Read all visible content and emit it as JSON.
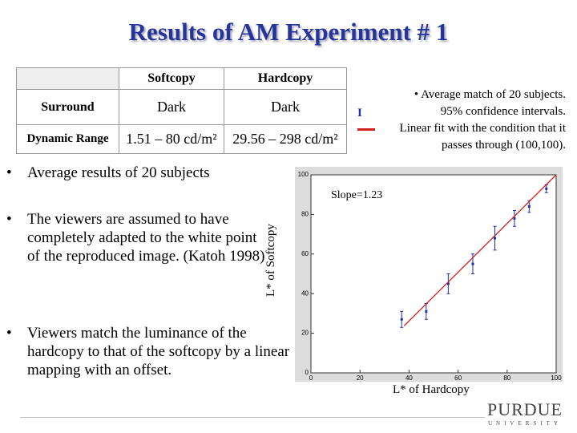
{
  "title": "Results of AM Experiment # 1",
  "table": {
    "header": [
      "Softcopy",
      "Hardcopy"
    ],
    "rows": [
      [
        "Surround",
        "Dark",
        "Dark"
      ],
      [
        "Dynamic Range",
        "1.51 – 80 cd/m²",
        "29.56 – 298 cd/m²"
      ]
    ]
  },
  "bullets": [
    "Average results of 20 subjects",
    "The viewers are assumed to have completely adapted to the white point of the reproduced image. (Katoh 1998)",
    "Viewers match the luminance of the hardcopy to that of the softcopy by a linear  mapping with an offset."
  ],
  "logo": {
    "name": "PURDUE",
    "sub": "UNIVERSITY"
  },
  "chart_data": {
    "type": "scatter",
    "xlabel": "L* of Hardcopy",
    "ylabel": "L* of Softcopy",
    "annotation": "Slope=1.23",
    "xlim": [
      0,
      100
    ],
    "ylim": [
      0,
      100
    ],
    "xticks": [
      0,
      20,
      40,
      60,
      80,
      100
    ],
    "yticks": [
      0,
      20,
      40,
      60,
      80,
      100
    ],
    "error_label": "95% confidence intervals.",
    "series": [
      {
        "name": "Average match of 20 subjects.",
        "color": "#1c2fb0",
        "kind": "points",
        "x": [
          37,
          47,
          56,
          66,
          75,
          83,
          89,
          96
        ],
        "values": [
          27,
          31,
          45,
          55,
          68,
          78,
          84,
          93
        ],
        "errors": [
          4,
          4,
          5,
          5,
          6,
          4,
          3,
          2
        ]
      },
      {
        "name": "Linear fit with the condition that it passes through (100,100).",
        "color": "#d42020",
        "kind": "line",
        "x": [
          38,
          100
        ],
        "values": [
          23.74,
          100
        ]
      }
    ]
  }
}
